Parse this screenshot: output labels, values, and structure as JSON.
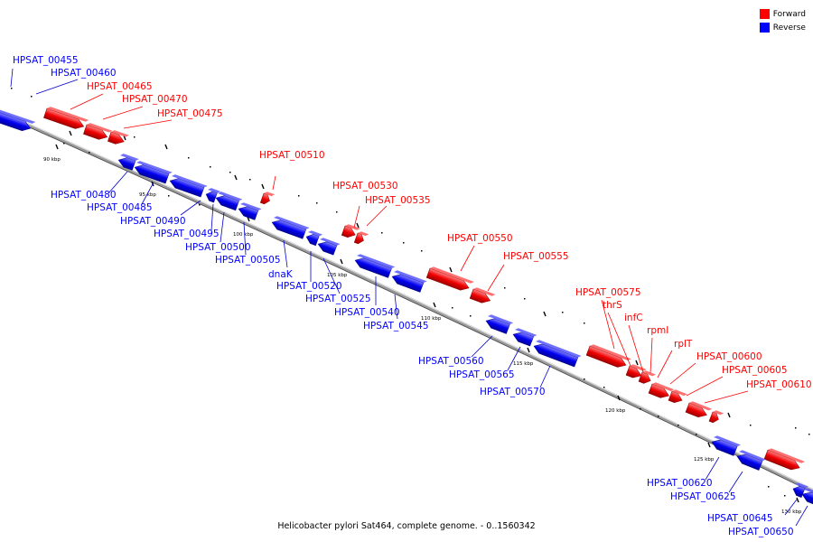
{
  "caption": "Helicobacter pylori Sat464, complete genome. - 0..1560342",
  "legend": [
    {
      "label": "Forward",
      "color": "#ff0000"
    },
    {
      "label": "Reverse",
      "color": "#0000ff"
    }
  ],
  "colors": {
    "forward": "#ff0000",
    "reverse": "#0000ff",
    "backbone": "#888888",
    "fwd_line": "#ff0000",
    "rev_line": "#0000cc"
  },
  "ticks": [
    {
      "kbp": 90,
      "label": "90 kbp"
    },
    {
      "kbp": 95,
      "label": "95 kbp"
    },
    {
      "kbp": 100,
      "label": "100 kbp"
    },
    {
      "kbp": 105,
      "label": "105 kbp"
    },
    {
      "kbp": 110,
      "label": "110 kbp"
    },
    {
      "kbp": 115,
      "label": "115 kbp"
    },
    {
      "kbp": 120,
      "label": "120 kbp"
    },
    {
      "kbp": 125,
      "label": "125 kbp"
    },
    {
      "kbp": 130,
      "label": "130 kbp"
    }
  ],
  "genes": [
    {
      "name": "HPSAT_00455",
      "strand": "reverse"
    },
    {
      "name": "HPSAT_00460",
      "strand": "reverse"
    },
    {
      "name": "HPSAT_00465",
      "strand": "forward"
    },
    {
      "name": "HPSAT_00470",
      "strand": "forward"
    },
    {
      "name": "HPSAT_00475",
      "strand": "forward"
    },
    {
      "name": "HPSAT_00480",
      "strand": "reverse"
    },
    {
      "name": "HPSAT_00485",
      "strand": "reverse"
    },
    {
      "name": "HPSAT_00490",
      "strand": "reverse"
    },
    {
      "name": "HPSAT_00495",
      "strand": "reverse"
    },
    {
      "name": "HPSAT_00500",
      "strand": "reverse"
    },
    {
      "name": "HPSAT_00505",
      "strand": "reverse"
    },
    {
      "name": "HPSAT_00510",
      "strand": "forward"
    },
    {
      "name": "dnaK",
      "strand": "reverse"
    },
    {
      "name": "HPSAT_00520",
      "strand": "reverse"
    },
    {
      "name": "HPSAT_00525",
      "strand": "reverse"
    },
    {
      "name": "HPSAT_00530",
      "strand": "forward"
    },
    {
      "name": "HPSAT_00535",
      "strand": "forward"
    },
    {
      "name": "HPSAT_00540",
      "strand": "reverse"
    },
    {
      "name": "HPSAT_00545",
      "strand": "reverse"
    },
    {
      "name": "HPSAT_00550",
      "strand": "forward"
    },
    {
      "name": "HPSAT_00555",
      "strand": "forward"
    },
    {
      "name": "HPSAT_00560",
      "strand": "reverse"
    },
    {
      "name": "HPSAT_00565",
      "strand": "reverse"
    },
    {
      "name": "HPSAT_00570",
      "strand": "reverse"
    },
    {
      "name": "HPSAT_00575",
      "strand": "forward"
    },
    {
      "name": "thrS",
      "strand": "forward"
    },
    {
      "name": "infC",
      "strand": "forward"
    },
    {
      "name": "rpmI",
      "strand": "forward"
    },
    {
      "name": "rplT",
      "strand": "forward"
    },
    {
      "name": "HPSAT_00600",
      "strand": "forward"
    },
    {
      "name": "HPSAT_00605",
      "strand": "forward"
    },
    {
      "name": "HPSAT_00610",
      "strand": "forward"
    },
    {
      "name": "HPSAT_00620",
      "strand": "reverse"
    },
    {
      "name": "HPSAT_00625",
      "strand": "reverse"
    },
    {
      "name": "HPSAT_00645",
      "strand": "reverse"
    },
    {
      "name": "HPSAT_00650",
      "strand": "reverse"
    }
  ]
}
